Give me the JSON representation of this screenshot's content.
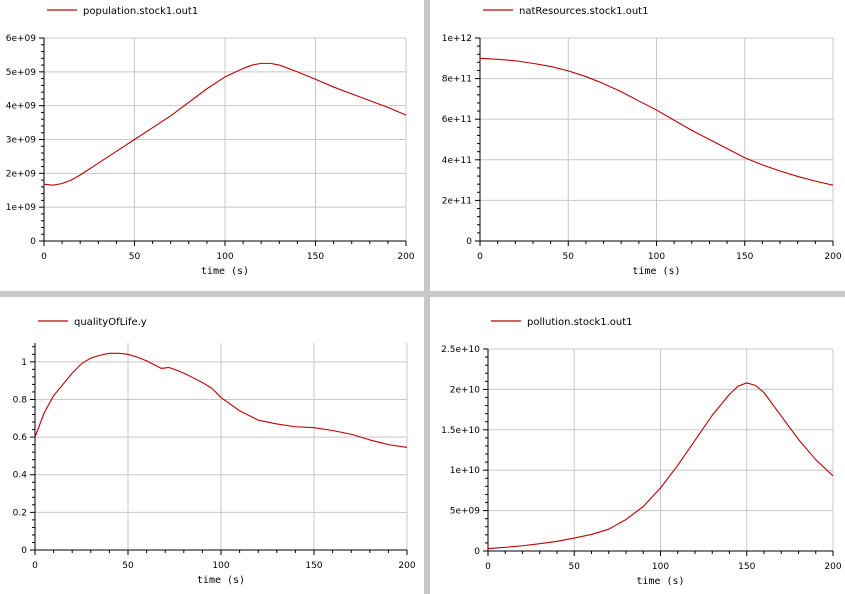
{
  "colors": {
    "series": "#c00000",
    "grid": "#c8c8c8",
    "axis": "#000000",
    "background": "#ffffff"
  },
  "chart_data": [
    {
      "type": "line",
      "legend": "population.stock1.out1",
      "legend_position": "top-left",
      "xlabel": "time (s)",
      "ylabel": "",
      "xlim": [
        0,
        200
      ],
      "ylim": [
        0,
        6000000000
      ],
      "x_ticks": [
        0,
        50,
        100,
        150,
        200
      ],
      "x_tick_labels": [
        "0",
        "50",
        "100",
        "150",
        "200"
      ],
      "y_ticks": [
        0,
        1000000000,
        2000000000,
        3000000000,
        4000000000,
        5000000000,
        6000000000
      ],
      "y_tick_labels": [
        "0",
        "1e+09",
        "2e+09",
        "3e+09",
        "4e+09",
        "5e+09",
        "6e+09"
      ],
      "grid": true,
      "series": [
        {
          "name": "population.stock1.out1",
          "x": [
            0,
            5,
            10,
            15,
            20,
            30,
            40,
            50,
            60,
            70,
            80,
            90,
            100,
            110,
            115,
            120,
            125,
            130,
            140,
            150,
            160,
            170,
            180,
            190,
            200
          ],
          "y": [
            1680000000,
            1650000000,
            1700000000,
            1800000000,
            1950000000,
            2300000000,
            2650000000,
            3000000000,
            3350000000,
            3700000000,
            4100000000,
            4500000000,
            4850000000,
            5100000000,
            5200000000,
            5250000000,
            5250000000,
            5200000000,
            5000000000,
            4780000000,
            4550000000,
            4350000000,
            4150000000,
            3950000000,
            3720000000
          ]
        }
      ]
    },
    {
      "type": "line",
      "legend": "natResources.stock1.out1",
      "legend_position": "top-left",
      "xlabel": "time (s)",
      "ylabel": "",
      "xlim": [
        0,
        200
      ],
      "ylim": [
        0,
        1000000000000
      ],
      "x_ticks": [
        0,
        50,
        100,
        150,
        200
      ],
      "x_tick_labels": [
        "0",
        "50",
        "100",
        "150",
        "200"
      ],
      "y_ticks": [
        0,
        200000000000,
        400000000000,
        600000000000,
        800000000000,
        1000000000000
      ],
      "y_tick_labels": [
        "0",
        "2e+11",
        "4e+11",
        "6e+11",
        "8e+11",
        "1e+12"
      ],
      "grid": true,
      "series": [
        {
          "name": "natResources.stock1.out1",
          "x": [
            0,
            10,
            20,
            30,
            40,
            50,
            60,
            70,
            80,
            90,
            100,
            110,
            120,
            130,
            140,
            150,
            160,
            170,
            180,
            190,
            200
          ],
          "y": [
            900000000000,
            895000000000,
            888000000000,
            875000000000,
            860000000000,
            838000000000,
            810000000000,
            775000000000,
            735000000000,
            690000000000,
            645000000000,
            595000000000,
            545000000000,
            500000000000,
            455000000000,
            410000000000,
            375000000000,
            345000000000,
            318000000000,
            295000000000,
            275000000000
          ]
        }
      ]
    },
    {
      "type": "line",
      "legend": "qualityOfLife.y",
      "legend_position": "top-left",
      "xlabel": "time (s)",
      "ylabel": "",
      "xlim": [
        0,
        200
      ],
      "ylim": [
        0,
        1.1
      ],
      "x_ticks": [
        0,
        50,
        100,
        150,
        200
      ],
      "x_tick_labels": [
        "0",
        "50",
        "100",
        "150",
        "200"
      ],
      "y_ticks": [
        0,
        0.2,
        0.4,
        0.6,
        0.8,
        1
      ],
      "y_tick_labels": [
        "0",
        "0.2",
        "0.4",
        "0.6",
        "0.8",
        "1"
      ],
      "grid": true,
      "series": [
        {
          "name": "qualityOfLife.y",
          "x": [
            0,
            5,
            10,
            15,
            20,
            25,
            30,
            35,
            40,
            45,
            50,
            55,
            60,
            65,
            68,
            72,
            75,
            80,
            85,
            90,
            95,
            100,
            110,
            120,
            130,
            140,
            150,
            160,
            170,
            180,
            190,
            200
          ],
          "y": [
            0.6,
            0.73,
            0.82,
            0.88,
            0.94,
            0.99,
            1.02,
            1.035,
            1.045,
            1.045,
            1.04,
            1.025,
            1.005,
            0.98,
            0.965,
            0.97,
            0.96,
            0.94,
            0.915,
            0.89,
            0.86,
            0.81,
            0.74,
            0.69,
            0.67,
            0.655,
            0.65,
            0.635,
            0.615,
            0.585,
            0.56,
            0.545
          ]
        }
      ]
    },
    {
      "type": "line",
      "legend": "pollution.stock1.out1",
      "legend_position": "top-left",
      "xlabel": "time (s)",
      "ylabel": "",
      "xlim": [
        0,
        200
      ],
      "ylim": [
        0,
        25000000000
      ],
      "x_ticks": [
        0,
        50,
        100,
        150,
        200
      ],
      "x_tick_labels": [
        "0",
        "50",
        "100",
        "150",
        "200"
      ],
      "y_ticks": [
        0,
        5000000000,
        10000000000,
        15000000000,
        20000000000,
        25000000000
      ],
      "y_tick_labels": [
        "0",
        "5e+09",
        "1e+10",
        "1.5e+10",
        "2e+10",
        "2.5e+10"
      ],
      "grid": true,
      "series": [
        {
          "name": "pollution.stock1.out1",
          "x": [
            0,
            10,
            20,
            30,
            40,
            50,
            60,
            70,
            80,
            90,
            100,
            110,
            120,
            130,
            140,
            145,
            150,
            155,
            160,
            170,
            180,
            190,
            200
          ],
          "y": [
            300000000,
            450000000,
            650000000,
            900000000,
            1200000000,
            1600000000,
            2050000000,
            2700000000,
            3900000000,
            5500000000,
            7800000000,
            10600000000,
            13700000000,
            16800000000,
            19400000000,
            20400000000,
            20800000000,
            20500000000,
            19600000000,
            16700000000,
            13800000000,
            11300000000,
            9300000000
          ]
        }
      ]
    }
  ]
}
